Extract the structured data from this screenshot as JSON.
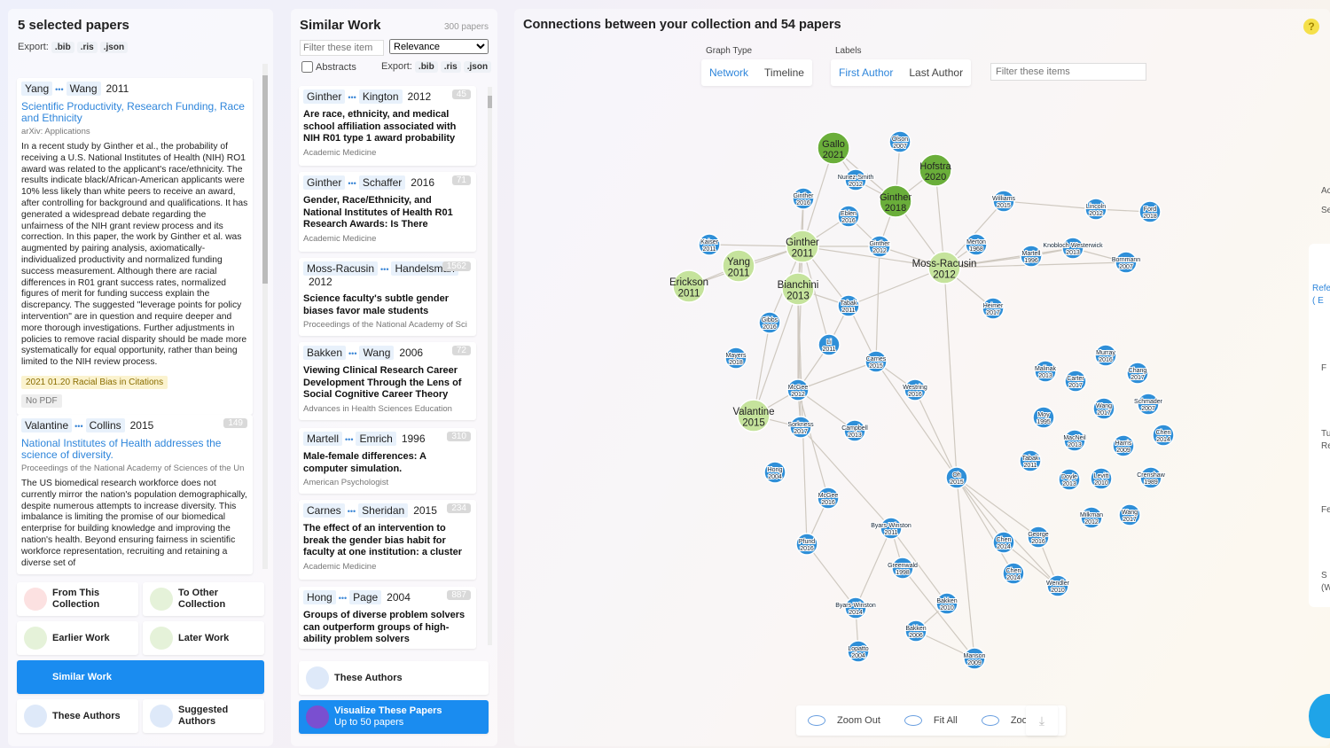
{
  "left_panel": {
    "title": "5 selected papers",
    "export_label": "Export:",
    "export_formats": [
      ".bib",
      ".ris",
      ".json"
    ],
    "papers": [
      {
        "authors": [
          "Yang",
          "Wang"
        ],
        "year": "2011",
        "title": "Scientific Productivity, Research Funding, Race and Ethnicity",
        "venue": "arXiv: Applications",
        "abstract": "In a recent study by Ginther et al., the probability of receiving a U.S. National Institutes of Health (NIH) RO1 award was related to the applicant's race/ethnicity. The results indicate black/African-American applicants were 10% less likely than white peers to receive an award, after controlling for background and qualifications. It has generated a widespread debate regarding the unfairness of the NIH grant review process and its correction. In this paper, the work by Ginther et al. was augmented by pairing analysis, axiomatically-individualized productivity and normalized funding success measurement. Although there are racial differences in R01 grant success rates, normalized figures of merit for funding success explain the discrepancy. The suggested \"leverage points for policy intervention\" are in question and require deeper and more thorough investigations. Further adjustments in policies to remove racial disparity should be made more systematically for equal opportunity, rather than being limited to the NIH review process.",
        "tag": "2021 01.20 Racial Bias in Citations",
        "pdf": "No PDF"
      },
      {
        "authors": [
          "Valantine",
          "Collins"
        ],
        "year": "2015",
        "citations": 149,
        "title": "National Institutes of Health addresses the science of diversity.",
        "venue": "Proceedings of the National Academy of Sciences of the Un",
        "abstract": "The US biomedical research workforce does not currently mirror the nation's population demographically, despite numerous attempts to increase diversity. This imbalance is limiting the promise of our biomedical enterprise for building knowledge and improving the nation's health. Beyond ensuring fairness in scientific workforce representation, recruiting and retaining a diverse set of"
      }
    ],
    "buttons": [
      "From This Collection",
      "To Other Collection",
      "Earlier Work",
      "Later Work",
      "Similar Work",
      "These Authors",
      "Suggested Authors"
    ]
  },
  "middle_panel": {
    "title": "Similar Work",
    "count": "300 papers",
    "filter_placeholder": "Filter these item",
    "sort": "Relevance",
    "abstracts_label": "Abstracts",
    "export_label": "Export:",
    "export_formats": [
      ".bib",
      ".ris",
      ".json"
    ],
    "papers": [
      {
        "authors": [
          "Ginther",
          "Kington"
        ],
        "year": "2012",
        "citations": 45,
        "title": "Are race, ethnicity, and medical school affiliation associated with NIH R01 type 1 award probability",
        "venue": "Academic Medicine"
      },
      {
        "authors": [
          "Ginther",
          "Schaffer"
        ],
        "year": "2016",
        "citations": 71,
        "title": "Gender, Race/Ethnicity, and National Institutes of Health R01 Research Awards: Is There",
        "venue": "Academic Medicine"
      },
      {
        "authors": [
          "Moss-Racusin",
          "Handelsman"
        ],
        "year": "2012",
        "citations": 1562,
        "title": "Science faculty's subtle gender biases favor male students",
        "venue": "Proceedings of the National Academy of Sci"
      },
      {
        "authors": [
          "Bakken",
          "Wang"
        ],
        "year": "2006",
        "citations": 72,
        "title": "Viewing Clinical Research Career Development Through the Lens of Social Cognitive Career Theory",
        "venue": "Advances in Health Sciences Education"
      },
      {
        "authors": [
          "Martell",
          "Emrich"
        ],
        "year": "1996",
        "citations": 310,
        "title": "Male-female differences: A computer simulation.",
        "venue": "American Psychologist"
      },
      {
        "authors": [
          "Carnes",
          "Sheridan"
        ],
        "year": "2015",
        "citations": 234,
        "title": "The effect of an intervention to break the gender bias habit for faculty at one institution: a cluster",
        "venue": "Academic Medicine"
      },
      {
        "authors": [
          "Hong",
          "Page"
        ],
        "year": "2004",
        "citations": 887,
        "title": "Groups of diverse problem solvers can outperform groups of high-ability problem solvers"
      }
    ],
    "authors_button": "These Authors",
    "visualize_button": "Visualize These Papers",
    "visualize_note": "Up to 50 papers"
  },
  "graph_panel": {
    "title": "Connections between your collection and 54 papers",
    "help": "?",
    "graph_type_label": "Graph Type",
    "graph_types": [
      "Network",
      "Timeline"
    ],
    "labels_label": "Labels",
    "label_options": [
      "First Author",
      "Last Author"
    ],
    "filter_placeholder": "Filter these items",
    "nodes": [
      {
        "label": "Gallo",
        "year": "2021"
      },
      {
        "label": "Hofstra",
        "year": "2020"
      },
      {
        "label": "Ginther",
        "year": "2018"
      },
      {
        "label": "Ginther",
        "year": "2011"
      },
      {
        "label": "Yang",
        "year": "2011"
      },
      {
        "label": "Erickson",
        "year": "2011"
      },
      {
        "label": "Moss-Racusin",
        "year": "2012"
      },
      {
        "label": "Bianchini",
        "year": "2013"
      },
      {
        "label": "Valantine",
        "year": "2015"
      },
      {
        "label": "Olson",
        "year": "2007"
      },
      {
        "label": "Nunez-Smith",
        "year": "2012"
      },
      {
        "label": "Ginther",
        "year": "2016"
      },
      {
        "label": "Eblen",
        "year": "2016"
      },
      {
        "label": "Ginther",
        "year": "2012"
      },
      {
        "label": "Williams",
        "year": "2015"
      },
      {
        "label": "Lincoln",
        "year": "2012"
      },
      {
        "label": "Ford",
        "year": "2018"
      },
      {
        "label": "Kaiser",
        "year": "2011"
      },
      {
        "label": "Merton",
        "year": "1968"
      },
      {
        "label": "Martell",
        "year": "1996"
      },
      {
        "label": "Knobloch-Westerwick",
        "year": "2013"
      },
      {
        "label": "Bornmann",
        "year": "2007"
      },
      {
        "label": "Tabak",
        "year": "2011"
      },
      {
        "label": "Heimer",
        "year": "2017"
      },
      {
        "label": "Gibbs",
        "year": "2016"
      },
      {
        "label": "Li",
        "year": "2011"
      },
      {
        "label": "Mayers",
        "year": "2018"
      },
      {
        "label": "Carnes",
        "year": "2015"
      },
      {
        "label": "McGee",
        "year": "2012"
      },
      {
        "label": "Westring",
        "year": "2016"
      },
      {
        "label": "Sorkness",
        "year": "2017"
      },
      {
        "label": "Campbell",
        "year": "2013"
      },
      {
        "label": "Hong",
        "year": "2004"
      },
      {
        "label": "Oh",
        "year": "2015"
      },
      {
        "label": "McGee",
        "year": "2016"
      },
      {
        "label": "Byars-Winston",
        "year": "2011"
      },
      {
        "label": "Pfund",
        "year": "2016"
      },
      {
        "label": "Greenwald",
        "year": "1998"
      },
      {
        "label": "Byars-Winston",
        "year": "2014"
      },
      {
        "label": "Bakken",
        "year": "2010"
      },
      {
        "label": "Bakken",
        "year": "2006"
      },
      {
        "label": "Lopatto",
        "year": "2004"
      },
      {
        "label": "Manson",
        "year": "2009"
      },
      {
        "label": "Chen",
        "year": "2014"
      },
      {
        "label": "George",
        "year": "2016"
      },
      {
        "label": "Chen",
        "year": "2014"
      },
      {
        "label": "Wendler",
        "year": "2010"
      },
      {
        "label": "Murray",
        "year": "2016"
      },
      {
        "label": "Malinak",
        "year": "2013"
      },
      {
        "label": "Carter",
        "year": "2017"
      },
      {
        "label": "Chang",
        "year": "2017"
      },
      {
        "label": "Schmader",
        "year": "2007"
      },
      {
        "label": "Wang",
        "year": "2017"
      },
      {
        "label": "Moy",
        "year": "1995"
      },
      {
        "label": "MacNeil",
        "year": "2013"
      },
      {
        "label": "Harris",
        "year": "2009"
      },
      {
        "label": "Chen",
        "year": "2014"
      },
      {
        "label": "Tabak",
        "year": "2011"
      },
      {
        "label": "Doyle",
        "year": "2013"
      },
      {
        "label": "Levitt",
        "year": "2010"
      },
      {
        "label": "Crenshaw",
        "year": "1989"
      },
      {
        "label": "Milkman",
        "year": "2012"
      },
      {
        "label": "Wang",
        "year": "2017"
      }
    ],
    "zoom_buttons": [
      "Zoom Out",
      "Fit All",
      "Zoom In"
    ]
  },
  "right_edge_fragments": [
    "Ac",
    "Se",
    "Refe",
    "( E",
    "F",
    "Tu",
    "Res",
    "Fee",
    "S",
    "(Wi"
  ]
}
